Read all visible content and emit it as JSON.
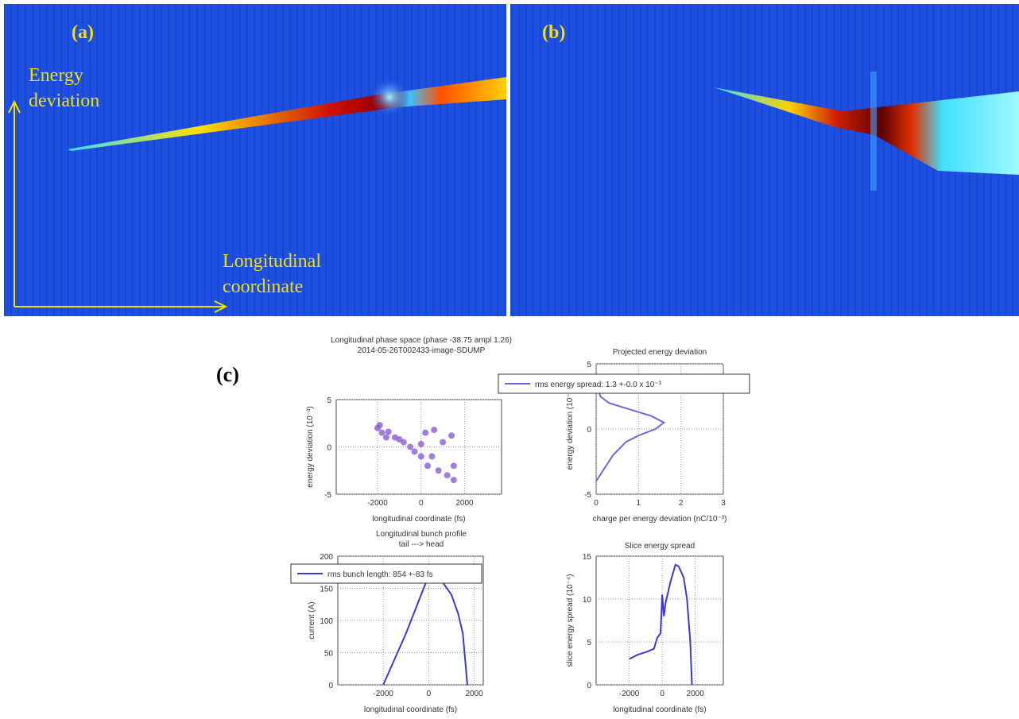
{
  "panels": {
    "a": {
      "label": "(a)",
      "y_axis": [
        "Energy",
        "deviation"
      ],
      "x_axis": [
        "Longitudinal",
        "coordinate"
      ]
    },
    "b": {
      "label": "(b)"
    },
    "c": {
      "label": "(c)"
    }
  },
  "chart_data": [
    {
      "type": "scatter",
      "title": [
        "Longitudinal phase space (phase -38.75 ampl 1.26)",
        "2014-05-26T002433-image-SDUMP"
      ],
      "xlabel": "longitudinal coordinate (fs)",
      "ylabel": "energy deviation (10⁻³)",
      "xlim": [
        -3900,
        3700
      ],
      "ylim": [
        -5,
        5
      ],
      "xticks": [
        -2000,
        0,
        2000
      ],
      "yticks": [
        -5,
        0,
        5
      ],
      "grid": true,
      "color": "#8a5cd6",
      "x": [
        -2000,
        -1900,
        -1800,
        -1600,
        -1500,
        -1200,
        -1000,
        -800,
        -500,
        -300,
        0,
        0,
        200,
        300,
        500,
        600,
        800,
        1000,
        1200,
        1400,
        1500,
        1500
      ],
      "values": [
        2,
        2.3,
        1.5,
        1,
        1.6,
        1,
        0.8,
        0.5,
        0,
        -0.5,
        -1,
        0.3,
        1.5,
        -2,
        -1,
        1.8,
        -2.5,
        0.5,
        -3,
        1.2,
        -2,
        -3.5
      ]
    },
    {
      "type": "line",
      "title": [
        "Projected energy deviation"
      ],
      "xlabel": "charge per energy deviation (nC/10⁻³)",
      "ylabel": "energy deviation (10⁻³)",
      "xlim": [
        0,
        3
      ],
      "ylim": [
        -5,
        5
      ],
      "xticks": [
        0,
        1,
        2,
        3
      ],
      "yticks": [
        -5,
        0,
        5
      ],
      "grid": true,
      "legend": "top",
      "x": [
        0,
        0.2,
        0.4,
        0.7,
        1.0,
        1.4,
        1.6,
        1.3,
        0.8,
        0.3,
        0.1,
        0.05
      ],
      "series": [
        {
          "name": "rms energy spread: 1.3 +-0.0 x 10⁻³",
          "color": "#6a6ad8",
          "values": [
            -4,
            -3,
            -2,
            -1,
            -0.5,
            0,
            0.5,
            1,
            1.5,
            2,
            2.5,
            3
          ]
        }
      ]
    },
    {
      "type": "line",
      "title": [
        "Longitudinal bunch profile",
        "tail ---> head"
      ],
      "xlabel": "longitudinal coordinate (fs)",
      "ylabel": "current (A)",
      "xlim": [
        -4000,
        2400
      ],
      "ylim": [
        0,
        200
      ],
      "xticks": [
        -2000,
        0,
        2000
      ],
      "yticks": [
        0,
        50,
        100,
        150,
        200
      ],
      "grid": true,
      "legend": "top",
      "x": [
        -2000,
        -1500,
        -1000,
        -500,
        0,
        200,
        500,
        1000,
        1300,
        1500,
        1700
      ],
      "series": [
        {
          "name": "rms bunch length: 854 +-83 fs",
          "color": "#3a3ad0",
          "values": [
            0,
            40,
            80,
            125,
            170,
            175,
            165,
            140,
            110,
            80,
            0
          ]
        }
      ]
    },
    {
      "type": "line",
      "title": [
        "Slice energy spread"
      ],
      "xlabel": "longitudinal coordinate (fs)",
      "ylabel": "slice energy spread (10⁻⁴)",
      "xlim": [
        -4000,
        3700
      ],
      "ylim": [
        0,
        15
      ],
      "xticks": [
        -2000,
        0,
        2000
      ],
      "yticks": [
        0,
        5,
        10,
        15
      ],
      "grid": true,
      "x": [
        -2000,
        -1500,
        -1000,
        -500,
        -300,
        -100,
        0,
        100,
        200,
        500,
        800,
        1000,
        1300,
        1500,
        1700,
        1800
      ],
      "series": [
        {
          "color": "#3a3ad0",
          "values": [
            3,
            3.5,
            3.8,
            4.2,
            5.5,
            6,
            10.5,
            8,
            9.5,
            12,
            14,
            13.8,
            12.5,
            10,
            5,
            0
          ]
        }
      ]
    }
  ]
}
